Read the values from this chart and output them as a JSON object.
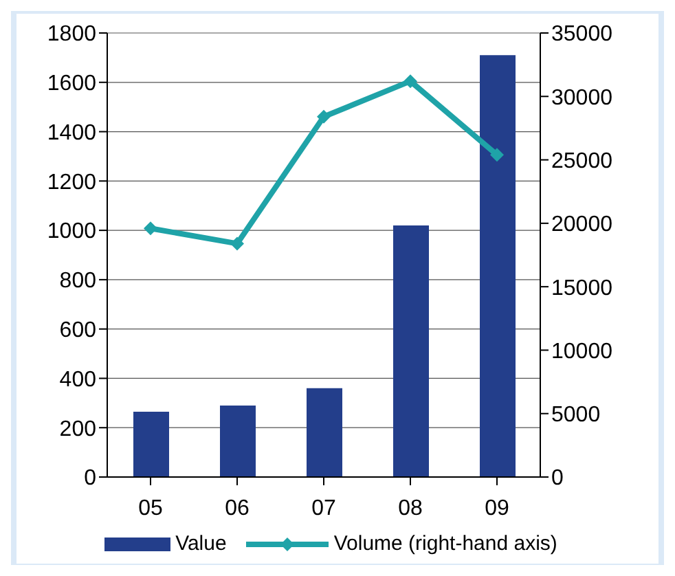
{
  "chart_data": {
    "type": "bar",
    "categories": [
      "05",
      "06",
      "07",
      "08",
      "09"
    ],
    "series": [
      {
        "name": "Value",
        "color": "#233e8b",
        "values": [
          265,
          290,
          360,
          1020,
          1710
        ]
      },
      {
        "name": "Volume (right-hand axis)",
        "type": "line",
        "axis": "y2",
        "color": "#1fa3a8",
        "values": [
          19600,
          18400,
          28400,
          31200,
          25400
        ]
      }
    ],
    "ylim": [
      0,
      1800
    ],
    "yticks": [
      0,
      200,
      400,
      600,
      800,
      1000,
      1200,
      1400,
      1600,
      1800
    ],
    "y2lim": [
      0,
      35000
    ],
    "y2ticks": [
      0,
      5000,
      10000,
      15000,
      20000,
      25000,
      30000,
      35000
    ],
    "grid": "y",
    "legend": "bottom",
    "marker": "diamond"
  }
}
